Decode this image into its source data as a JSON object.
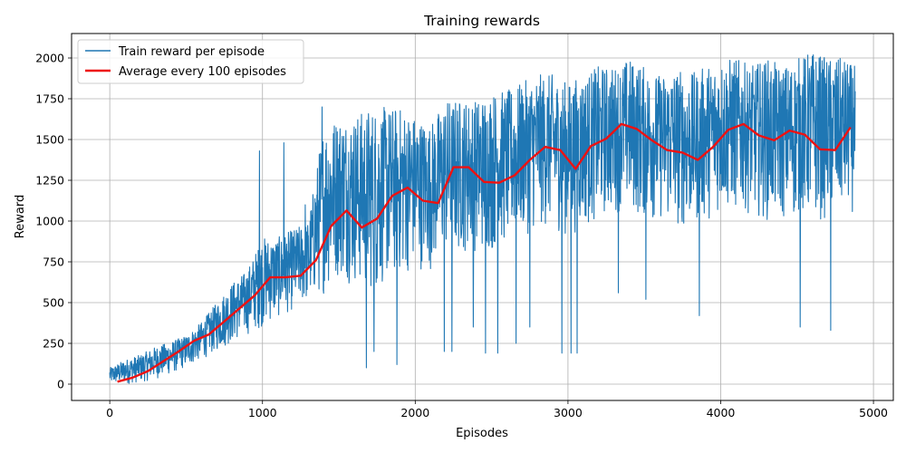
{
  "chart_data": {
    "type": "line",
    "title": "Training rewards",
    "xlabel": "Episodes",
    "ylabel": "Reward",
    "xlim": [
      -250,
      5130
    ],
    "ylim": [
      -100,
      2150
    ],
    "xticks": [
      0,
      1000,
      2000,
      3000,
      4000,
      5000
    ],
    "yticks": [
      0,
      250,
      500,
      750,
      1000,
      1250,
      1500,
      1750,
      2000
    ],
    "grid": true,
    "legend_position": "top-left",
    "series": [
      {
        "name": "Train reward per episode",
        "color": "#1f77b4",
        "kind": "noisy-band",
        "x": [
          0,
          100,
          200,
          300,
          400,
          500,
          600,
          700,
          800,
          900,
          1000,
          1100,
          1200,
          1300,
          1400,
          1500,
          1600,
          1700,
          1800,
          1900,
          2000,
          2100,
          2200,
          2300,
          2400,
          2500,
          2600,
          2700,
          2800,
          2900,
          3000,
          3100,
          3200,
          3300,
          3400,
          3500,
          3600,
          3700,
          3800,
          3900,
          4000,
          4100,
          4200,
          4300,
          4400,
          4500,
          4600,
          4700,
          4800,
          4880
        ],
        "low": [
          0,
          0,
          10,
          30,
          60,
          100,
          150,
          200,
          250,
          300,
          350,
          400,
          450,
          500,
          550,
          650,
          600,
          550,
          600,
          650,
          700,
          700,
          750,
          800,
          800,
          800,
          850,
          900,
          950,
          950,
          900,
          950,
          1000,
          1050,
          1050,
          1000,
          1000,
          950,
          950,
          1000,
          1050,
          1050,
          1050,
          1000,
          1000,
          1000,
          1000,
          1000,
          1050,
          1050
        ],
        "high": [
          100,
          150,
          180,
          230,
          260,
          300,
          380,
          500,
          620,
          700,
          900,
          900,
          950,
          1000,
          1600,
          1650,
          1650,
          1700,
          1700,
          1700,
          1650,
          1600,
          1750,
          1750,
          1750,
          1800,
          1800,
          1850,
          1900,
          1900,
          1850,
          1900,
          1950,
          1950,
          2000,
          1950,
          1900,
          1950,
          1900,
          1950,
          2000,
          2000,
          1950,
          2000,
          1950,
          2000,
          2050,
          2000,
          2000,
          1950
        ],
        "spikes_x": [
          980,
          1140,
          1280,
          1390,
          1680,
          1730,
          1750,
          1880,
          1950,
          2190,
          2240,
          2380,
          2460,
          2540,
          2660,
          2750,
          2960,
          3020,
          3060,
          3330,
          3510,
          3860,
          4520,
          4720
        ],
        "spikes_y": [
          1430,
          1480,
          1100,
          1700,
          100,
          200,
          650,
          120,
          1250,
          200,
          200,
          350,
          190,
          190,
          250,
          350,
          190,
          190,
          190,
          560,
          520,
          420,
          350,
          330
        ]
      },
      {
        "name": "Average every 100 episodes",
        "color": "#ee1111",
        "x": [
          50,
          150,
          250,
          350,
          450,
          550,
          650,
          750,
          850,
          950,
          1050,
          1150,
          1250,
          1350,
          1450,
          1550,
          1650,
          1750,
          1850,
          1950,
          2050,
          2150,
          2250,
          2350,
          2450,
          2550,
          2650,
          2750,
          2850,
          2950,
          3050,
          3150,
          3250,
          3350,
          3450,
          3550,
          3650,
          3750,
          3850,
          3950,
          4050,
          4150,
          4250,
          4350,
          4450,
          4550,
          4650,
          4750,
          4850
        ],
        "values": [
          15,
          40,
          80,
          140,
          200,
          265,
          305,
          385,
          465,
          545,
          655,
          655,
          665,
          760,
          970,
          1065,
          960,
          1015,
          1155,
          1205,
          1125,
          1110,
          1330,
          1330,
          1240,
          1235,
          1280,
          1375,
          1455,
          1435,
          1320,
          1460,
          1505,
          1595,
          1565,
          1495,
          1435,
          1420,
          1375,
          1455,
          1560,
          1595,
          1525,
          1495,
          1555,
          1530,
          1440,
          1435,
          1575
        ]
      }
    ]
  }
}
